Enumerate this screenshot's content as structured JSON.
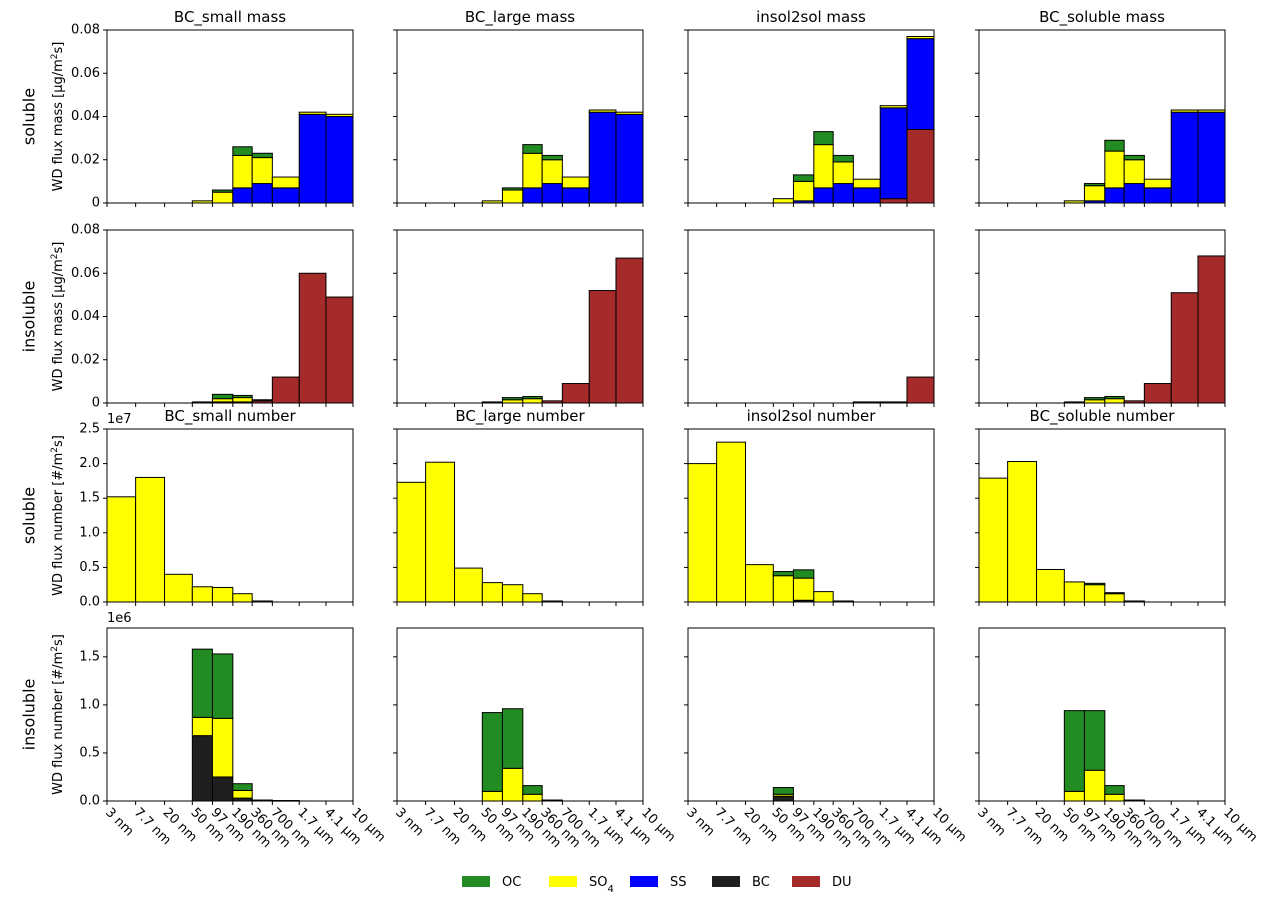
{
  "colors": {
    "OC": "#228b22",
    "SO4": "#ffff00",
    "SS": "#0000ff",
    "BC": "#1f1f1f",
    "DU": "#a52a2a"
  },
  "legend": {
    "entries": [
      {
        "key": "OC",
        "label": "OC",
        "sub": ""
      },
      {
        "key": "SO4",
        "label": "SO",
        "sub": "4"
      },
      {
        "key": "SS",
        "label": "SS",
        "sub": ""
      },
      {
        "key": "BC",
        "label": "BC",
        "sub": ""
      },
      {
        "key": "DU",
        "label": "DU",
        "sub": ""
      }
    ],
    "placement": "bottom-center"
  },
  "row_labels": [
    "soluble",
    "insoluble",
    "soluble",
    "insoluble"
  ],
  "chart_data": {
    "type": "bar",
    "stacked": true,
    "columns": [
      "BC_small",
      "BC_large",
      "insol2sol",
      "BC_soluble"
    ],
    "column_titles_mass": [
      "BC_small mass",
      "BC_large mass",
      "insol2sol mass",
      "BC_soluble mass"
    ],
    "column_titles_number": [
      "BC_small number",
      "BC_large number",
      "insol2sol number",
      "BC_soluble number"
    ],
    "bin_edges_log10_m": [
      -8.523,
      -8.113,
      -7.699,
      -7.301,
      -7.013,
      -6.721,
      -6.444,
      -6.155,
      -5.77,
      -5.387,
      -5.0
    ],
    "tick_labels": [
      "3 nm",
      "7.7 nm",
      "20 nm",
      "50 nm",
      "97 nm",
      "190 nm",
      "360 nm",
      "700 nm",
      "1.7 μm",
      "4.1 μm",
      "10 μm"
    ],
    "species_order": [
      "BC",
      "DU",
      "SS",
      "SO4",
      "OC"
    ],
    "rows": [
      {
        "ylabel": "WD flux mass [μg/m²s]",
        "ylabel_main": "WD flux mass [μg/m",
        "ylabel_sup": "2",
        "ylabel_tail": "s]",
        "ylim": [
          0,
          0.08
        ],
        "yticks": [
          "0",
          "0.02",
          "0.04",
          "0.06",
          "0.08"
        ],
        "scale_text": "",
        "panels": [
          {
            "bars": [
              {},
              {},
              {},
              {
                "SO4": 0.001
              },
              {
                "SO4": 0.005,
                "OC": 0.001
              },
              {
                "SS": 0.007,
                "SO4": 0.015,
                "OC": 0.004
              },
              {
                "SS": 0.009,
                "SO4": 0.012,
                "OC": 0.002
              },
              {
                "SS": 0.007,
                "SO4": 0.005
              },
              {
                "SS": 0.041,
                "SO4": 0.001
              },
              {
                "SS": 0.04,
                "SO4": 0.001
              }
            ]
          },
          {
            "bars": [
              {},
              {},
              {},
              {
                "SO4": 0.001
              },
              {
                "SO4": 0.006,
                "OC": 0.001
              },
              {
                "SS": 0.007,
                "SO4": 0.016,
                "OC": 0.004
              },
              {
                "SS": 0.009,
                "SO4": 0.011,
                "OC": 0.002
              },
              {
                "SS": 0.007,
                "SO4": 0.005
              },
              {
                "SS": 0.042,
                "SO4": 0.001
              },
              {
                "SS": 0.041,
                "SO4": 0.001
              }
            ]
          },
          {
            "bars": [
              {},
              {},
              {},
              {
                "SO4": 0.002
              },
              {
                "SO4": 0.009,
                "OC": 0.003,
                "SS": 0.001
              },
              {
                "SS": 0.007,
                "SO4": 0.02,
                "OC": 0.006
              },
              {
                "SS": 0.009,
                "SO4": 0.01,
                "OC": 0.003
              },
              {
                "SS": 0.007,
                "SO4": 0.004
              },
              {
                "DU": 0.002,
                "SS": 0.042,
                "SO4": 0.001
              },
              {
                "DU": 0.034,
                "SS": 0.042,
                "SO4": 0.001
              }
            ]
          },
          {
            "bars": [
              {},
              {},
              {},
              {
                "SO4": 0.001
              },
              {
                "SO4": 0.007,
                "OC": 0.001,
                "SS": 0.001
              },
              {
                "SS": 0.007,
                "SO4": 0.017,
                "OC": 0.005
              },
              {
                "SS": 0.009,
                "SO4": 0.011,
                "OC": 0.002
              },
              {
                "SS": 0.007,
                "SO4": 0.004
              },
              {
                "SS": 0.042,
                "SO4": 0.001
              },
              {
                "SS": 0.042,
                "SO4": 0.001
              }
            ]
          }
        ]
      },
      {
        "ylabel": "WD flux mass [μg/m²s]",
        "ylabel_main": "WD flux mass [μg/m",
        "ylabel_sup": "2",
        "ylabel_tail": "s]",
        "ylim": [
          0,
          0.08
        ],
        "yticks": [
          "0",
          "0.02",
          "0.04",
          "0.06",
          "0.08"
        ],
        "scale_text": "",
        "panels": [
          {
            "bars": [
              {},
              {},
              {},
              {
                "OC": 0.0005
              },
              {
                "BC": 0.0005,
                "SO4": 0.0015,
                "OC": 0.002
              },
              {
                "BC": 0.0005,
                "SO4": 0.002,
                "OC": 0.001
              },
              {
                "DU": 0.001,
                "OC": 0.0005
              },
              {
                "DU": 0.012
              },
              {
                "DU": 0.06
              },
              {
                "DU": 0.049
              }
            ]
          },
          {
            "bars": [
              {},
              {},
              {},
              {
                "OC": 0.0005
              },
              {
                "SO4": 0.0015,
                "OC": 0.001
              },
              {
                "SO4": 0.002,
                "OC": 0.001
              },
              {
                "DU": 0.001
              },
              {
                "DU": 0.009
              },
              {
                "DU": 0.052
              },
              {
                "DU": 0.067
              }
            ]
          },
          {
            "bars": [
              {},
              {},
              {},
              {},
              {},
              {},
              {},
              {
                "DU": 0.0005
              },
              {
                "DU": 0.0005
              },
              {
                "DU": 0.012
              }
            ]
          },
          {
            "bars": [
              {},
              {},
              {},
              {
                "OC": 0.0005
              },
              {
                "SO4": 0.0015,
                "OC": 0.001
              },
              {
                "SO4": 0.002,
                "OC": 0.001
              },
              {
                "DU": 0.001
              },
              {
                "DU": 0.009
              },
              {
                "DU": 0.051
              },
              {
                "DU": 0.068
              }
            ]
          }
        ]
      },
      {
        "ylabel": "WD flux number [#/m²s]",
        "ylabel_main": "WD flux number [#/m",
        "ylabel_sup": "2",
        "ylabel_tail": "s]",
        "ylim": [
          0,
          25000000
        ],
        "yticks": [
          "0.0",
          "0.5",
          "1.0",
          "1.5",
          "2.0",
          "2.5"
        ],
        "scale_text": "1e7",
        "panels": [
          {
            "bars": [
              {
                "SO4": 15200000
              },
              {
                "SO4": 18000000
              },
              {
                "SO4": 4000000
              },
              {
                "SO4": 2200000
              },
              {
                "SO4": 2100000
              },
              {
                "SO4": 1200000
              },
              {
                "SO4": 150000
              },
              {},
              {},
              {}
            ]
          },
          {
            "bars": [
              {
                "SO4": 17300000
              },
              {
                "SO4": 20200000
              },
              {
                "SO4": 4900000
              },
              {
                "SO4": 2800000
              },
              {
                "SO4": 2500000
              },
              {
                "SO4": 1200000
              },
              {
                "SO4": 150000
              },
              {},
              {},
              {}
            ]
          },
          {
            "bars": [
              {
                "SO4": 20000000
              },
              {
                "SO4": 23100000
              },
              {
                "SO4": 5400000
              },
              {
                "SO4": 3800000,
                "OC": 600000
              },
              {
                "BC": 250000,
                "SO4": 3200000,
                "OC": 1200000
              },
              {
                "SO4": 1500000
              },
              {
                "SO4": 150000
              },
              {},
              {},
              {}
            ]
          },
          {
            "bars": [
              {
                "SO4": 17900000
              },
              {
                "SO4": 20300000
              },
              {
                "SO4": 4700000
              },
              {
                "SO4": 2900000
              },
              {
                "SO4": 2500000,
                "OC": 200000
              },
              {
                "SO4": 1200000,
                "OC": 150000
              },
              {
                "SO4": 150000
              },
              {},
              {},
              {}
            ]
          }
        ]
      },
      {
        "ylabel": "WD flux number [#/m²s]",
        "ylabel_main": "WD flux number [#/m",
        "ylabel_sup": "2",
        "ylabel_tail": "s]",
        "ylim": [
          0,
          1800000
        ],
        "yticks": [
          "0.0",
          "0.5",
          "1.0",
          "1.5"
        ],
        "scale_text": "1e6",
        "panels": [
          {
            "bars": [
              {},
              {},
              {},
              {
                "BC": 680000,
                "SO4": 190000,
                "OC": 710000
              },
              {
                "BC": 250000,
                "SO4": 610000,
                "OC": 670000
              },
              {
                "BC": 30000,
                "SO4": 80000,
                "OC": 70000
              },
              {
                "SO4": 10000
              },
              {
                "SO4": 5000
              },
              {},
              {}
            ]
          },
          {
            "bars": [
              {},
              {},
              {},
              {
                "SO4": 100000,
                "OC": 820000
              },
              {
                "SO4": 340000,
                "OC": 620000
              },
              {
                "SO4": 70000,
                "OC": 90000
              },
              {
                "SO4": 10000
              },
              {},
              {},
              {}
            ]
          },
          {
            "bars": [
              {},
              {},
              {},
              {
                "BC": 50000,
                "SO4": 20000,
                "OC": 70000
              },
              {},
              {},
              {},
              {},
              {},
              {}
            ]
          },
          {
            "bars": [
              {},
              {},
              {},
              {
                "SO4": 100000,
                "OC": 840000
              },
              {
                "SO4": 320000,
                "OC": 620000
              },
              {
                "SO4": 70000,
                "OC": 90000
              },
              {
                "SO4": 10000
              },
              {},
              {},
              {}
            ]
          }
        ]
      }
    ]
  }
}
